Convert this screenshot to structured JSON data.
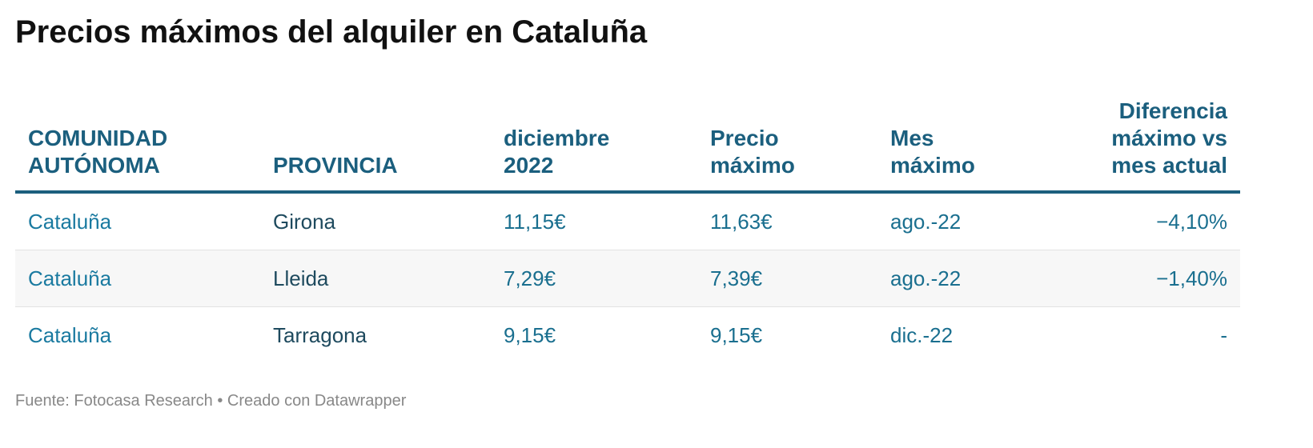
{
  "header": {
    "title": "Precios máximos del alquiler en Cataluña"
  },
  "table": {
    "columns": [
      "COMUNIDAD AUTÓNOMA",
      "PROVINCIA",
      "diciembre 2022",
      "Precio máximo",
      "Mes máximo",
      "Diferencia máximo vs mes actual"
    ],
    "rows": [
      [
        "Cataluña",
        "Girona",
        "11,15€",
        "11,63€",
        "ago.-22",
        "−4,10%"
      ],
      [
        "Cataluña",
        "Lleida",
        "7,29€",
        "7,39€",
        "ago.-22",
        "−1,40%"
      ],
      [
        "Cataluña",
        "Tarragona",
        "9,15€",
        "9,15€",
        "dic.-22",
        "-"
      ]
    ]
  },
  "footer": {
    "source": "Fuente: Fotocasa Research • Creado con Datawrapper"
  }
}
